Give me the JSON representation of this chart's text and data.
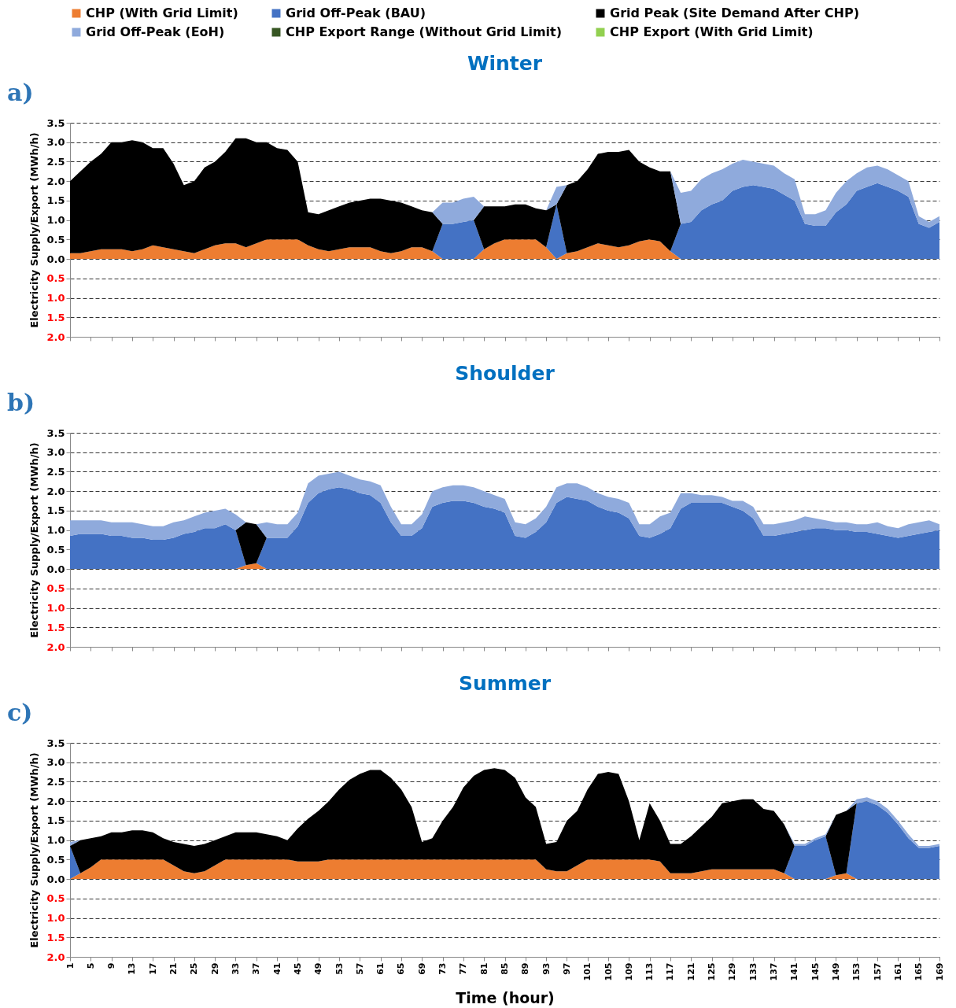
{
  "chart_data": [
    {
      "type": "area",
      "title": "Winter",
      "ylabel": "Electricity Supply/Export (MWh/h)",
      "annotations": [
        "a)"
      ],
      "stacked": true,
      "grid": "y",
      "legend": "top",
      "tick_labels": "y",
      "x": [
        1,
        3,
        5,
        7,
        9,
        11,
        13,
        15,
        17,
        19,
        21,
        23,
        25,
        27,
        29,
        31,
        33,
        35,
        37,
        39,
        41,
        43,
        45,
        47,
        49,
        51,
        53,
        55,
        57,
        59,
        61,
        63,
        65,
        67,
        69,
        71,
        73,
        75,
        77,
        79,
        81,
        83,
        85,
        87,
        89,
        91,
        93,
        95,
        97,
        99,
        101,
        103,
        105,
        107,
        109,
        111,
        113,
        115,
        117,
        119,
        121,
        123,
        125,
        127,
        129,
        131,
        133,
        135,
        137,
        139,
        141,
        143,
        145,
        147,
        149,
        151,
        153,
        155,
        157,
        159,
        161,
        163,
        165,
        167,
        169
      ],
      "xlim": [
        1,
        169
      ],
      "xticks": [
        1,
        5,
        9,
        13,
        17,
        21,
        25,
        29,
        33,
        37,
        41,
        45,
        49,
        53,
        57,
        61,
        65,
        69,
        73,
        77,
        81,
        85,
        89,
        93,
        97,
        101,
        105,
        109,
        113,
        117,
        121,
        125,
        129,
        133,
        137,
        141,
        145,
        149,
        153,
        157,
        161,
        165,
        169
      ],
      "ylim": [
        -2,
        3.5
      ],
      "yticks": [
        {
          "value": -2,
          "label": "2.0"
        },
        {
          "value": -1.5,
          "label": "1.5"
        },
        {
          "value": -1,
          "label": "1.0"
        },
        {
          "value": -0.5,
          "label": "0.5"
        },
        {
          "value": 0,
          "label": "0.0"
        },
        0.5,
        {
          "value": 1,
          "label": "1.0"
        },
        1.5,
        {
          "value": 2,
          "label": "2.0"
        },
        2.5,
        {
          "value": 3,
          "label": "3.0"
        },
        3.5
      ],
      "series": [
        {
          "name": "CHP (With Grid Limit)",
          "color": "#ed7d31",
          "values": [
            0.15,
            0.15,
            0.2,
            0.25,
            0.25,
            0.25,
            0.2,
            0.25,
            0.35,
            0.3,
            0.25,
            0.2,
            0.15,
            0.25,
            0.35,
            0.4,
            0.4,
            0.3,
            0.4,
            0.5,
            0.5,
            0.5,
            0.5,
            0.35,
            0.25,
            0.2,
            0.25,
            0.3,
            0.3,
            0.3,
            0.2,
            0.15,
            0.2,
            0.3,
            0.3,
            0.2,
            0,
            0,
            0,
            0,
            0.25,
            0.4,
            0.5,
            0.5,
            0.5,
            0.5,
            0.3,
            0,
            0.15,
            0.2,
            0.3,
            0.4,
            0.35,
            0.3,
            0.35,
            0.45,
            0.5,
            0.45,
            0.2,
            0,
            0,
            0,
            0,
            0,
            0,
            0,
            0,
            0,
            0,
            0,
            0,
            0,
            0,
            0,
            0,
            0,
            0,
            0,
            0,
            0,
            0,
            0,
            0,
            0,
            0
          ]
        },
        {
          "name": "Grid Off-Peak (BAU)",
          "color": "#4472c4",
          "values": [
            0,
            0,
            0,
            0,
            0,
            0,
            0,
            0,
            0,
            0,
            0,
            0,
            0,
            0,
            0,
            0,
            0,
            0,
            0,
            0,
            0,
            0,
            0,
            0,
            0,
            0,
            0,
            0,
            0,
            0,
            0,
            0,
            0,
            0,
            0,
            0,
            0.9,
            0.9,
            0.95,
            1.0,
            0,
            0,
            0,
            0,
            0,
            0,
            0,
            1.4,
            0,
            0,
            0,
            0,
            0,
            0,
            0,
            0,
            0,
            0,
            0,
            0.9,
            0.95,
            1.25,
            1.4,
            1.5,
            1.75,
            1.85,
            1.9,
            1.85,
            1.8,
            1.65,
            1.5,
            0.9,
            0.85,
            0.85,
            1.2,
            1.4,
            1.75,
            1.85,
            1.95,
            1.85,
            1.75,
            1.6,
            0.9,
            0.8,
            0.95
          ]
        },
        {
          "name": "Grid Peak (Site Demand After CHP)",
          "color": "#000000",
          "values": [
            1.85,
            2.1,
            2.3,
            2.45,
            2.75,
            2.75,
            2.85,
            2.75,
            2.5,
            2.55,
            2.2,
            1.7,
            1.85,
            2.1,
            2.15,
            2.35,
            2.7,
            2.8,
            2.6,
            2.5,
            2.35,
            2.3,
            2.0,
            0.85,
            0.9,
            1.05,
            1.1,
            1.15,
            1.2,
            1.25,
            1.35,
            1.35,
            1.25,
            1.05,
            0.95,
            1.0,
            0,
            0,
            0,
            0,
            1.1,
            0.95,
            0.85,
            0.9,
            0.9,
            0.8,
            0.95,
            0,
            1.75,
            1.8,
            2.0,
            2.3,
            2.4,
            2.45,
            2.45,
            2.05,
            1.85,
            1.8,
            2.05,
            0,
            0,
            0,
            0,
            0,
            0,
            0,
            0,
            0,
            0,
            0,
            0,
            0,
            0,
            0,
            0,
            0,
            0,
            0,
            0,
            0,
            0,
            0,
            0,
            0,
            0
          ]
        },
        {
          "name": "Grid Off-Peak (EoH)",
          "color": "#8faadc",
          "values": [
            0,
            0,
            0,
            0,
            0,
            0,
            0,
            0,
            0,
            0,
            0,
            0,
            0,
            0,
            0,
            0,
            0,
            0,
            0,
            0,
            0,
            0,
            0,
            0,
            0,
            0,
            0,
            0,
            0,
            0,
            0,
            0,
            0,
            0,
            0,
            0,
            0.55,
            0.55,
            0.6,
            0.6,
            0,
            0,
            0,
            0,
            0,
            0,
            0,
            0.45,
            0,
            0,
            0,
            0,
            0,
            0,
            0,
            0,
            0,
            0,
            0,
            0.8,
            0.8,
            0.8,
            0.8,
            0.8,
            0.7,
            0.7,
            0.6,
            0.6,
            0.6,
            0.55,
            0.55,
            0.25,
            0.3,
            0.4,
            0.5,
            0.6,
            0.45,
            0.5,
            0.45,
            0.45,
            0.4,
            0.4,
            0.2,
            0.15,
            0.15
          ]
        },
        {
          "name": "CHP Export Range (Without Grid Limit)",
          "color": "#375623",
          "values": [
            null,
            null,
            null,
            null,
            null,
            null,
            null,
            null,
            null,
            null,
            null,
            null,
            null,
            null,
            null,
            null,
            null,
            null,
            null,
            null,
            null,
            null,
            null,
            null,
            null,
            null,
            null,
            null,
            null,
            null,
            null,
            null,
            null,
            null,
            null,
            null,
            null,
            null,
            null,
            null,
            null,
            null,
            null,
            null,
            null,
            null,
            null,
            null,
            null,
            null,
            null,
            null,
            null,
            null,
            null,
            null,
            null,
            null,
            null,
            null,
            null,
            null,
            null,
            null,
            null,
            null,
            null,
            null,
            null,
            null,
            null,
            null,
            null,
            null,
            null,
            null,
            null,
            null,
            null,
            null,
            null,
            null,
            null,
            null,
            null
          ]
        },
        {
          "name": "CHP Export (With Grid Limit)",
          "color": "#92d050",
          "values": [
            null,
            null,
            null,
            null,
            null,
            null,
            null,
            null,
            null,
            null,
            null,
            null,
            null,
            null,
            null,
            null,
            null,
            null,
            null,
            null,
            null,
            null,
            null,
            null,
            null,
            null,
            null,
            null,
            null,
            null,
            null,
            null,
            null,
            null,
            null,
            null,
            null,
            null,
            null,
            null,
            null,
            null,
            null,
            null,
            null,
            null,
            null,
            null,
            null,
            null,
            null,
            null,
            null,
            null,
            null,
            null,
            null,
            null,
            null,
            null,
            null,
            null,
            null,
            null,
            null,
            null,
            null,
            null,
            null,
            null,
            null,
            null,
            null,
            null,
            null,
            null,
            null,
            null,
            null,
            null,
            null,
            null,
            null,
            null,
            null
          ]
        }
      ]
    },
    {
      "type": "area",
      "title": "Shoulder",
      "ylabel": "Electricity Supply/Export (MWh/h)",
      "annotations": [
        "b)"
      ],
      "stacked": true,
      "grid": "y",
      "tick_labels": "y",
      "x": [
        1,
        3,
        5,
        7,
        9,
        11,
        13,
        15,
        17,
        19,
        21,
        23,
        25,
        27,
        29,
        31,
        33,
        35,
        37,
        39,
        41,
        43,
        45,
        47,
        49,
        51,
        53,
        55,
        57,
        59,
        61,
        63,
        65,
        67,
        69,
        71,
        73,
        75,
        77,
        79,
        81,
        83,
        85,
        87,
        89,
        91,
        93,
        95,
        97,
        99,
        101,
        103,
        105,
        107,
        109,
        111,
        113,
        115,
        117,
        119,
        121,
        123,
        125,
        127,
        129,
        131,
        133,
        135,
        137,
        139,
        141,
        143,
        145,
        147,
        149,
        151,
        153,
        155,
        157,
        159,
        161,
        163,
        165,
        167,
        169
      ],
      "xlim": [
        1,
        169
      ],
      "xticks": [
        1,
        5,
        9,
        13,
        17,
        21,
        25,
        29,
        33,
        37,
        41,
        45,
        49,
        53,
        57,
        61,
        65,
        69,
        73,
        77,
        81,
        85,
        89,
        93,
        97,
        101,
        105,
        109,
        113,
        117,
        121,
        125,
        129,
        133,
        137,
        141,
        145,
        149,
        153,
        157,
        161,
        165,
        169
      ],
      "ylim": [
        -2,
        3.5
      ],
      "yticks": [
        {
          "value": -2,
          "label": "2.0"
        },
        {
          "value": -1.5,
          "label": "1.5"
        },
        {
          "value": -1,
          "label": "1.0"
        },
        {
          "value": -0.5,
          "label": "0.5"
        },
        {
          "value": 0,
          "label": "0.0"
        },
        0.5,
        {
          "value": 1,
          "label": "1.0"
        },
        1.5,
        {
          "value": 2,
          "label": "2.0"
        },
        2.5,
        {
          "value": 3,
          "label": "3.0"
        },
        3.5
      ],
      "series": [
        {
          "name": "CHP (With Grid Limit)",
          "color": "#ed7d31",
          "values": [
            0,
            0,
            0,
            0,
            0,
            0,
            0,
            0,
            0,
            0,
            0,
            0,
            0,
            0,
            0,
            0,
            0,
            0.1,
            0.15,
            0,
            0,
            0,
            0,
            0,
            0,
            0,
            0,
            0,
            0,
            0,
            0,
            0,
            0,
            0,
            0,
            0,
            0,
            0,
            0,
            0,
            0,
            0,
            0,
            0,
            0,
            0,
            0,
            0,
            0,
            0,
            0,
            0,
            0,
            0,
            0,
            0,
            0,
            0,
            0,
            0,
            0,
            0,
            0,
            0,
            0,
            0,
            0,
            0,
            0,
            0,
            0,
            0,
            0,
            0,
            0,
            0,
            0,
            0,
            0,
            0,
            0,
            0,
            0,
            0,
            0
          ]
        },
        {
          "name": "Grid Off-Peak (BAU)",
          "color": "#4472c4",
          "values": [
            0.85,
            0.9,
            0.9,
            0.9,
            0.85,
            0.85,
            0.8,
            0.8,
            0.75,
            0.75,
            0.8,
            0.9,
            0.95,
            1.05,
            1.05,
            1.15,
            1.0,
            0,
            0,
            0.8,
            0.8,
            0.8,
            1.1,
            1.7,
            1.95,
            2.05,
            2.1,
            2.05,
            1.95,
            1.9,
            1.7,
            1.2,
            0.85,
            0.85,
            1.05,
            1.6,
            1.7,
            1.75,
            1.75,
            1.7,
            1.6,
            1.55,
            1.45,
            0.85,
            0.8,
            0.95,
            1.2,
            1.7,
            1.85,
            1.8,
            1.75,
            1.6,
            1.5,
            1.45,
            1.3,
            0.85,
            0.8,
            0.9,
            1.05,
            1.55,
            1.7,
            1.7,
            1.7,
            1.7,
            1.6,
            1.5,
            1.3,
            0.85,
            0.85,
            0.9,
            0.95,
            1.0,
            1.05,
            1.05,
            1.0,
            1.0,
            0.95,
            0.95,
            0.9,
            0.85,
            0.8,
            0.85,
            0.9,
            0.95,
            1.0
          ]
        },
        {
          "name": "Grid Peak (Site Demand After CHP)",
          "color": "#000000",
          "values": [
            0,
            0,
            0,
            0,
            0,
            0,
            0,
            0,
            0,
            0,
            0,
            0,
            0,
            0,
            0,
            0,
            0,
            1.1,
            1.0,
            0,
            0,
            0,
            0,
            0,
            0,
            0,
            0,
            0,
            0,
            0,
            0,
            0,
            0,
            0,
            0,
            0,
            0,
            0,
            0,
            0,
            0,
            0,
            0,
            0,
            0,
            0,
            0,
            0,
            0,
            0,
            0,
            0,
            0,
            0,
            0,
            0,
            0,
            0,
            0,
            0,
            0,
            0,
            0,
            0,
            0,
            0,
            0,
            0,
            0,
            0,
            0,
            0,
            0,
            0,
            0,
            0,
            0,
            0,
            0,
            0,
            0,
            0,
            0,
            0,
            0
          ]
        },
        {
          "name": "Grid Off-Peak (EoH)",
          "color": "#8faadc",
          "values": [
            0.4,
            0.35,
            0.35,
            0.35,
            0.35,
            0.35,
            0.4,
            0.35,
            0.35,
            0.35,
            0.4,
            0.35,
            0.4,
            0.4,
            0.45,
            0.4,
            0.4,
            0,
            0,
            0.4,
            0.35,
            0.35,
            0.35,
            0.5,
            0.45,
            0.4,
            0.4,
            0.35,
            0.35,
            0.35,
            0.45,
            0.4,
            0.3,
            0.3,
            0.35,
            0.4,
            0.4,
            0.4,
            0.4,
            0.4,
            0.4,
            0.35,
            0.35,
            0.35,
            0.35,
            0.35,
            0.4,
            0.4,
            0.35,
            0.4,
            0.35,
            0.35,
            0.35,
            0.35,
            0.4,
            0.3,
            0.35,
            0.45,
            0.4,
            0.4,
            0.25,
            0.2,
            0.2,
            0.15,
            0.15,
            0.25,
            0.3,
            0.3,
            0.3,
            0.3,
            0.3,
            0.35,
            0.25,
            0.2,
            0.2,
            0.2,
            0.2,
            0.2,
            0.3,
            0.25,
            0.25,
            0.3,
            0.3,
            0.3,
            0.15
          ]
        }
      ]
    },
    {
      "type": "area",
      "title": "Summer",
      "xlabel": "Time (hour)",
      "ylabel": "Electricity Supply/Export (MWh/h)",
      "annotations": [
        "c)"
      ],
      "stacked": true,
      "grid": "y",
      "x": [
        1,
        3,
        5,
        7,
        9,
        11,
        13,
        15,
        17,
        19,
        21,
        23,
        25,
        27,
        29,
        31,
        33,
        35,
        37,
        39,
        41,
        43,
        45,
        47,
        49,
        51,
        53,
        55,
        57,
        59,
        61,
        63,
        65,
        67,
        69,
        71,
        73,
        75,
        77,
        79,
        81,
        83,
        85,
        87,
        89,
        91,
        93,
        95,
        97,
        99,
        101,
        103,
        105,
        107,
        109,
        111,
        113,
        115,
        117,
        119,
        121,
        123,
        125,
        127,
        129,
        131,
        133,
        135,
        137,
        139,
        141,
        143,
        145,
        147,
        149,
        151,
        153,
        155,
        157,
        159,
        161,
        163,
        165,
        167,
        169
      ],
      "xlim": [
        1,
        169
      ],
      "xticks": [
        1,
        5,
        9,
        13,
        17,
        21,
        25,
        29,
        33,
        37,
        41,
        45,
        49,
        53,
        57,
        61,
        65,
        69,
        73,
        77,
        81,
        85,
        89,
        93,
        97,
        101,
        105,
        109,
        113,
        117,
        121,
        125,
        129,
        133,
        137,
        141,
        145,
        149,
        153,
        157,
        161,
        165,
        169
      ],
      "ylim": [
        -2,
        3.5
      ],
      "yticks": [
        {
          "value": -2,
          "label": "2.0"
        },
        {
          "value": -1.5,
          "label": "1.5"
        },
        {
          "value": -1,
          "label": "1.0"
        },
        {
          "value": -0.5,
          "label": "0.5"
        },
        {
          "value": 0,
          "label": "0.0"
        },
        0.5,
        {
          "value": 1,
          "label": "1.0"
        },
        1.5,
        {
          "value": 2,
          "label": "2.0"
        },
        2.5,
        {
          "value": 3,
          "label": "3.0"
        },
        3.5
      ],
      "series": [
        {
          "name": "CHP (With Grid Limit)",
          "color": "#ed7d31",
          "values": [
            0,
            0.15,
            0.3,
            0.5,
            0.5,
            0.5,
            0.5,
            0.5,
            0.5,
            0.5,
            0.35,
            0.2,
            0.15,
            0.2,
            0.35,
            0.5,
            0.5,
            0.5,
            0.5,
            0.5,
            0.5,
            0.5,
            0.45,
            0.45,
            0.45,
            0.5,
            0.5,
            0.5,
            0.5,
            0.5,
            0.5,
            0.5,
            0.5,
            0.5,
            0.5,
            0.5,
            0.5,
            0.5,
            0.5,
            0.5,
            0.5,
            0.5,
            0.5,
            0.5,
            0.5,
            0.5,
            0.25,
            0.2,
            0.2,
            0.35,
            0.5,
            0.5,
            0.5,
            0.5,
            0.5,
            0.5,
            0.5,
            0.45,
            0.15,
            0.15,
            0.15,
            0.2,
            0.25,
            0.25,
            0.25,
            0.25,
            0.25,
            0.25,
            0.25,
            0.15,
            0,
            0,
            0,
            0,
            0.1,
            0.15,
            0,
            0,
            0,
            0,
            0,
            0,
            0,
            0,
            0
          ]
        },
        {
          "name": "Grid Off-Peak (BAU)",
          "color": "#4472c4",
          "values": [
            0.85,
            0,
            0,
            0,
            0,
            0,
            0,
            0,
            0,
            0,
            0,
            0,
            0,
            0,
            0,
            0,
            0,
            0,
            0,
            0,
            0,
            0,
            0,
            0,
            0,
            0,
            0,
            0,
            0,
            0,
            0,
            0,
            0,
            0,
            0,
            0,
            0,
            0,
            0,
            0,
            0,
            0,
            0,
            0,
            0,
            0,
            0,
            0,
            0,
            0,
            0,
            0,
            0,
            0,
            0,
            0,
            0,
            0,
            0,
            0,
            0,
            0,
            0,
            0,
            0,
            0,
            0,
            0,
            0,
            0,
            0.85,
            0.85,
            1.0,
            1.1,
            0,
            0,
            1.95,
            2.0,
            1.9,
            1.7,
            1.4,
            1.05,
            0.8,
            0.8,
            0.85
          ]
        },
        {
          "name": "Grid Peak (Site Demand After CHP)",
          "color": "#000000",
          "values": [
            0,
            0.85,
            0.75,
            0.6,
            0.7,
            0.7,
            0.75,
            0.75,
            0.7,
            0.55,
            0.6,
            0.7,
            0.7,
            0.7,
            0.65,
            0.6,
            0.7,
            0.7,
            0.7,
            0.65,
            0.6,
            0.5,
            0.85,
            1.1,
            1.3,
            1.5,
            1.8,
            2.05,
            2.2,
            2.3,
            2.3,
            2.1,
            1.8,
            1.35,
            0.45,
            0.55,
            1.0,
            1.35,
            1.85,
            2.15,
            2.3,
            2.35,
            2.3,
            2.1,
            1.6,
            1.35,
            0.65,
            0.75,
            1.3,
            1.4,
            1.8,
            2.2,
            2.25,
            2.2,
            1.5,
            0.5,
            1.45,
            1.05,
            0.75,
            0.75,
            0.95,
            1.15,
            1.35,
            1.7,
            1.75,
            1.8,
            1.8,
            1.55,
            1.5,
            1.25,
            0,
            0,
            0,
            0,
            1.55,
            1.6,
            0,
            0,
            0,
            0,
            0,
            0,
            0,
            0,
            0
          ]
        },
        {
          "name": "Grid Off-Peak (EoH)",
          "color": "#8faadc",
          "values": [
            0.1,
            0,
            0,
            0,
            0,
            0,
            0,
            0,
            0,
            0,
            0,
            0,
            0,
            0,
            0,
            0,
            0,
            0,
            0,
            0,
            0,
            0,
            0,
            0,
            0,
            0,
            0,
            0,
            0,
            0,
            0,
            0,
            0,
            0,
            0,
            0,
            0,
            0,
            0,
            0,
            0,
            0,
            0,
            0,
            0,
            0,
            0,
            0,
            0,
            0,
            0,
            0,
            0,
            0,
            0,
            0,
            0,
            0,
            0,
            0,
            0,
            0,
            0,
            0,
            0,
            0,
            0,
            0,
            0,
            0,
            0.05,
            0.05,
            0.05,
            0.05,
            0,
            0,
            0.1,
            0.1,
            0.1,
            0.1,
            0.1,
            0.1,
            0.05,
            0.05,
            0.05
          ]
        }
      ]
    }
  ]
}
